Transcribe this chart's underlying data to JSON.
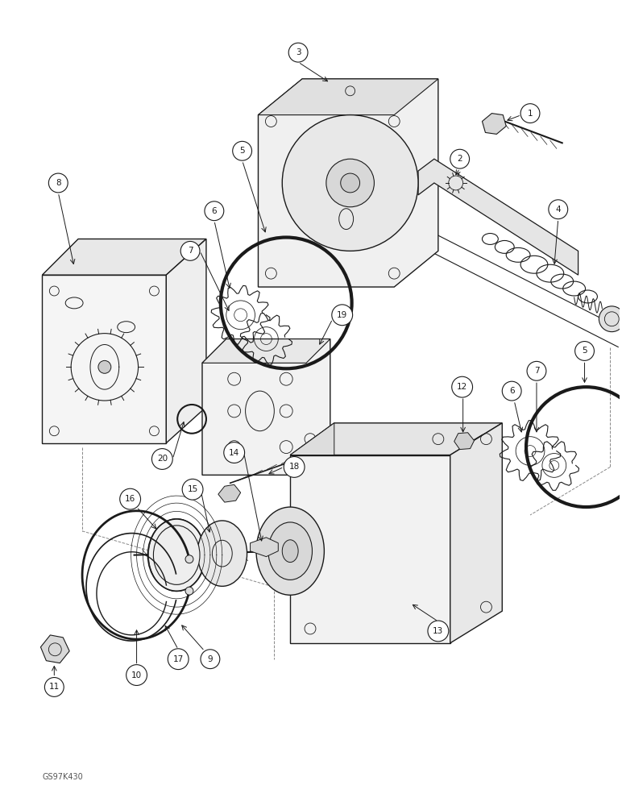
{
  "figure_size": [
    7.72,
    10.0
  ],
  "dpi": 100,
  "bg_color": "#ffffff",
  "line_color": "#1a1a1a",
  "watermark_text": "GS97K430",
  "watermark_fontsize": 7
}
